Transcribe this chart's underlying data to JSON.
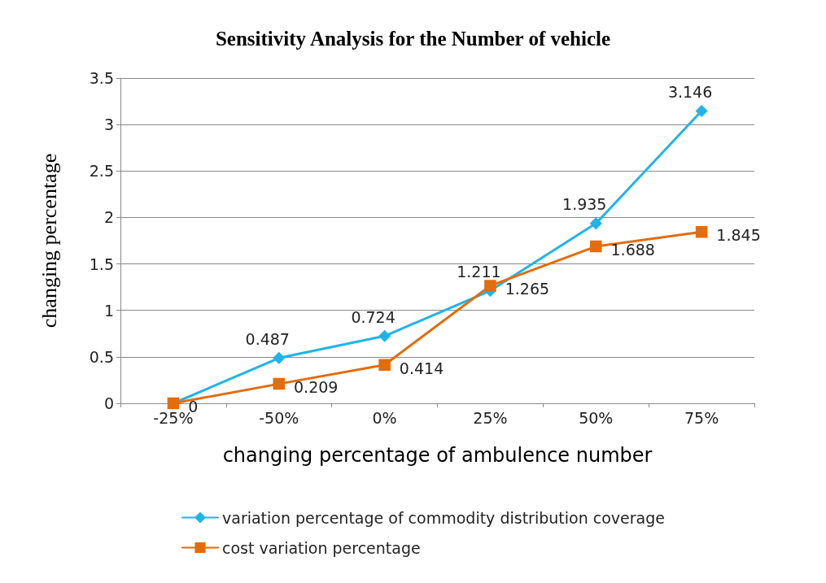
{
  "chart_data": {
    "type": "line",
    "title": "Sensitivity Analysis for the Number of vehicle",
    "xlabel": "changing percentage of ambulence number",
    "ylabel": "changing percentage",
    "categories": [
      "-25%",
      "-50%",
      "0%",
      "25%",
      "50%",
      "75%"
    ],
    "series": [
      {
        "name": "variation percentage of commodity distribution coverage",
        "color": "#1fb4e8",
        "marker": "diamond",
        "values": [
          0,
          0.487,
          0.724,
          1.211,
          1.935,
          3.146
        ],
        "value_labels": [
          null,
          "0.487",
          "0.724",
          "1.211",
          "1.935",
          "3.146"
        ]
      },
      {
        "name": "cost variation percentage",
        "color": "#e46c0a",
        "marker": "square",
        "values": [
          0,
          0.209,
          0.414,
          1.265,
          1.688,
          1.845
        ],
        "value_labels": [
          "0",
          "0.209",
          "0.414",
          "1.265",
          "1.688",
          "1.845"
        ]
      }
    ],
    "ylim": [
      0,
      3.5
    ],
    "yticks": [
      0,
      0.5,
      1,
      1.5,
      2,
      2.5,
      3,
      3.5
    ],
    "grid": "y",
    "legend": "bottom",
    "line_style": "solid"
  }
}
